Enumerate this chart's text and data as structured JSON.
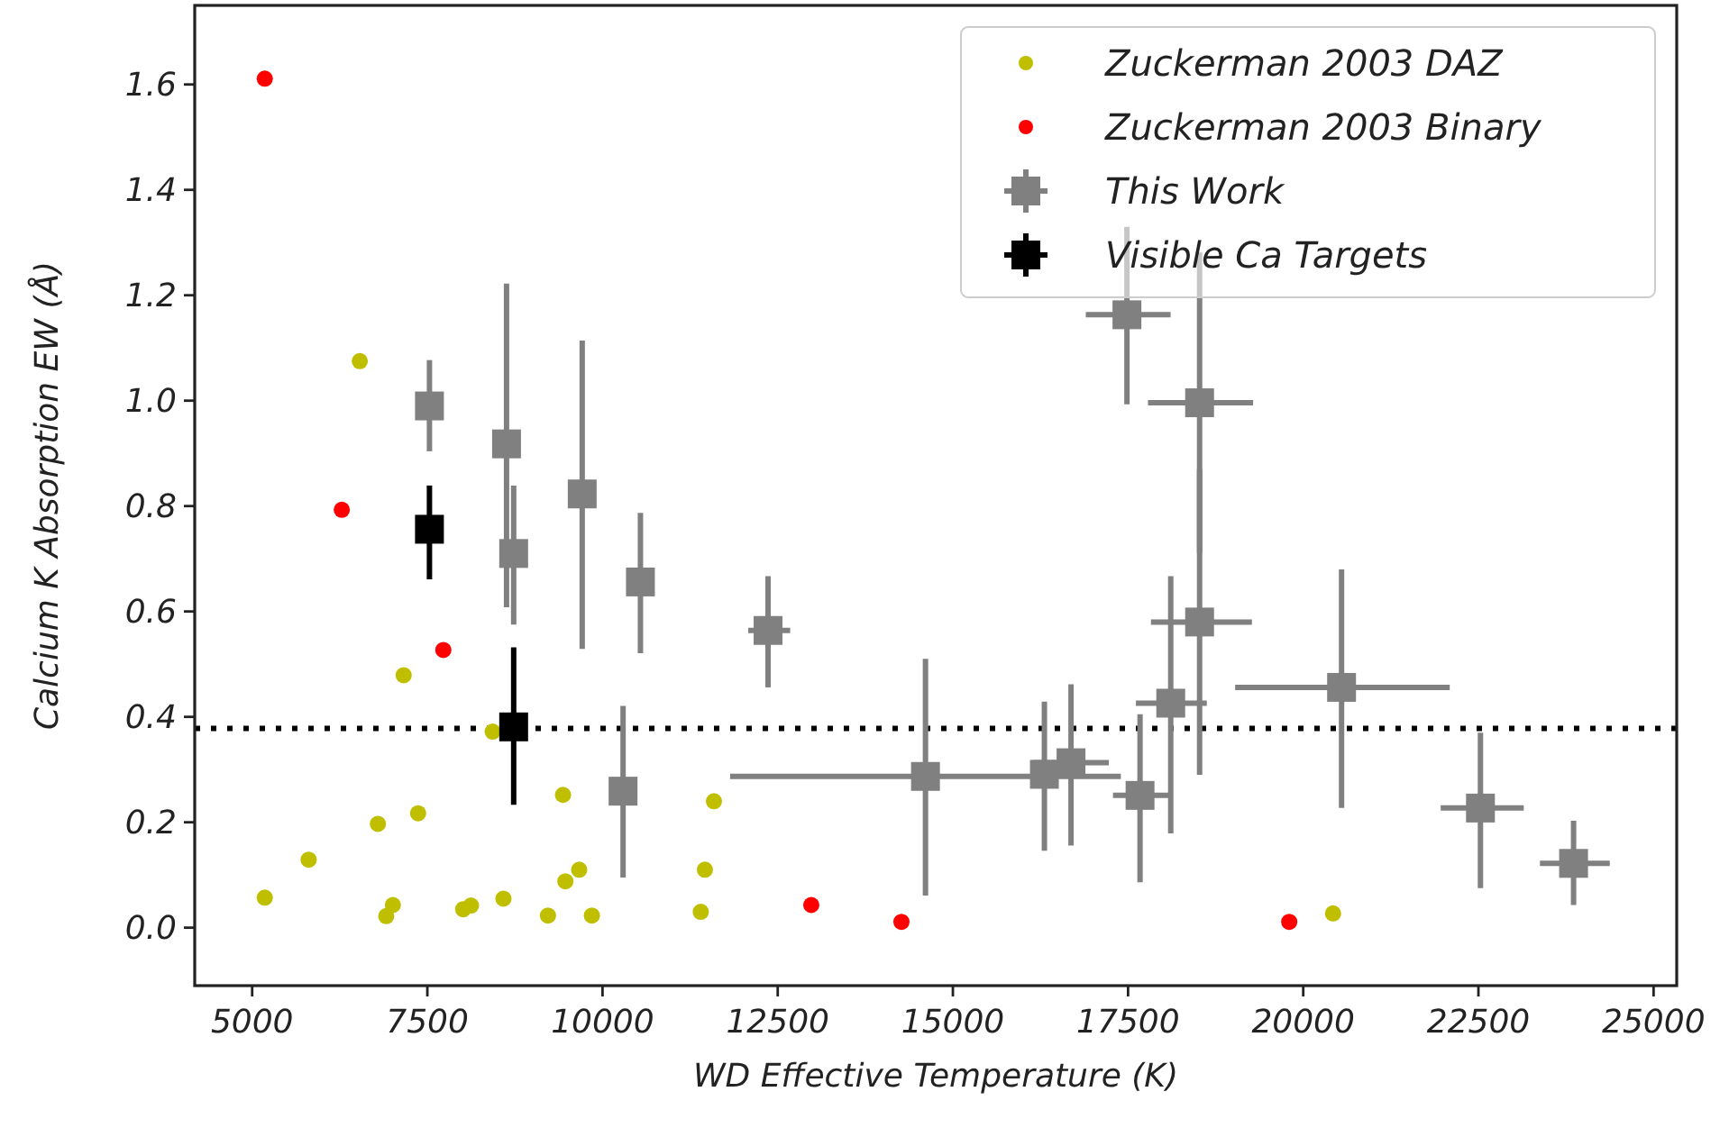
{
  "chart_data": {
    "type": "scatter",
    "xlabel": "WD Effective Temperature (K)",
    "ylabel": "Calcium K Absorption EW (Å)",
    "xlim": [
      4180,
      25330
    ],
    "ylim": [
      -0.11,
      1.75
    ],
    "xticks": [
      5000,
      7500,
      10000,
      12500,
      15000,
      17500,
      20000,
      22500,
      25000
    ],
    "yticks": [
      {
        "value": 0,
        "label": "0.0"
      },
      {
        "value": 0.2,
        "label": "0.2"
      },
      {
        "value": 0.4,
        "label": "0.4"
      },
      {
        "value": 0.6,
        "label": "0.6"
      },
      {
        "value": 0.8,
        "label": "0.8"
      },
      {
        "value": 1,
        "label": "1.0"
      },
      {
        "value": 1.2,
        "label": "1.2"
      },
      {
        "value": 1.4,
        "label": "1.4"
      },
      {
        "value": 1.6,
        "label": "1.6"
      }
    ],
    "grid": false,
    "legend": "top right",
    "ref_lines": [
      {
        "axis": "y",
        "value": 0.378,
        "color": "#000000",
        "line_style": "dotted"
      }
    ],
    "series": [
      {
        "name": "Zuckerman 2003 DAZ",
        "color": "#bfbf00",
        "marker": "circle",
        "x": [
          5180,
          5806,
          6794,
          7368,
          6913,
          7008,
          8012,
          8123,
          8586,
          9221,
          9436,
          9470,
          9667,
          9848,
          11402,
          11461,
          11590,
          7162,
          8432,
          6536,
          20425
        ],
        "values": [
          0.057,
          0.129,
          0.197,
          0.217,
          0.022,
          0.043,
          0.035,
          0.042,
          0.055,
          0.023,
          0.252,
          0.088,
          0.11,
          0.023,
          0.03,
          0.11,
          0.24,
          0.479,
          0.372,
          1.075,
          0.027
        ]
      },
      {
        "name": "Zuckerman 2003 Binary",
        "color": "#ff0000",
        "marker": "circle",
        "x": [
          5180,
          6279,
          7728,
          12979,
          14266,
          19800
        ],
        "values": [
          1.611,
          0.793,
          0.527,
          0.043,
          0.011,
          0.011
        ]
      },
      {
        "name": "This Work",
        "color": "#808080",
        "marker": "square",
        "x": [
          7530,
          8630,
          8732,
          9710,
          10541,
          10293,
          12362,
          14609,
          16306,
          16686,
          17671,
          18109,
          18521,
          18521,
          17484,
          20547,
          22529,
          23858
        ],
        "values": [
          0.99,
          0.918,
          0.71,
          0.823,
          0.656,
          0.259,
          0.564,
          0.287,
          0.291,
          0.313,
          0.251,
          0.426,
          0.58,
          0.996,
          1.163,
          0.456,
          0.227,
          0.122
        ],
        "errors": [
          [
            0.904,
            1.077
          ],
          [
            0.608,
            1.222
          ],
          [
            0.575,
            0.839
          ],
          [
            0.529,
            1.114
          ],
          [
            0.521,
            0.787
          ],
          [
            0.095,
            0.421
          ],
          [
            0.456,
            0.667
          ],
          [
            0.061,
            0.51
          ],
          [
            0.146,
            0.429
          ],
          [
            0.156,
            0.462
          ],
          [
            0.086,
            0.405
          ],
          [
            0.179,
            0.667
          ],
          [
            0.29,
            0.87
          ],
          [
            0.711,
            1.281
          ],
          [
            0.993,
            1.33
          ],
          [
            0.227,
            0.68
          ],
          [
            0.075,
            0.37
          ],
          [
            0.043,
            0.203
          ]
        ],
        "xerrors": [
          null,
          null,
          null,
          null,
          null,
          null,
          [
            12079,
            12678
          ],
          [
            11821,
            17397
          ],
          null,
          [
            16146,
            17226
          ],
          [
            17285,
            18083
          ],
          [
            17612,
            18624
          ],
          [
            17827,
            19268
          ],
          [
            17784,
            19285
          ],
          [
            16897,
            18107
          ],
          [
            19028,
            22091
          ],
          [
            21962,
            23147
          ],
          [
            23378,
            24375
          ]
        ]
      },
      {
        "name": "Visible Ca Targets",
        "color": "#000000",
        "marker": "square",
        "x": [
          7530,
          8732
        ],
        "values": [
          0.756,
          0.381
        ],
        "errors": [
          [
            0.661,
            0.839
          ],
          [
            0.233,
            0.532
          ]
        ]
      }
    ]
  }
}
